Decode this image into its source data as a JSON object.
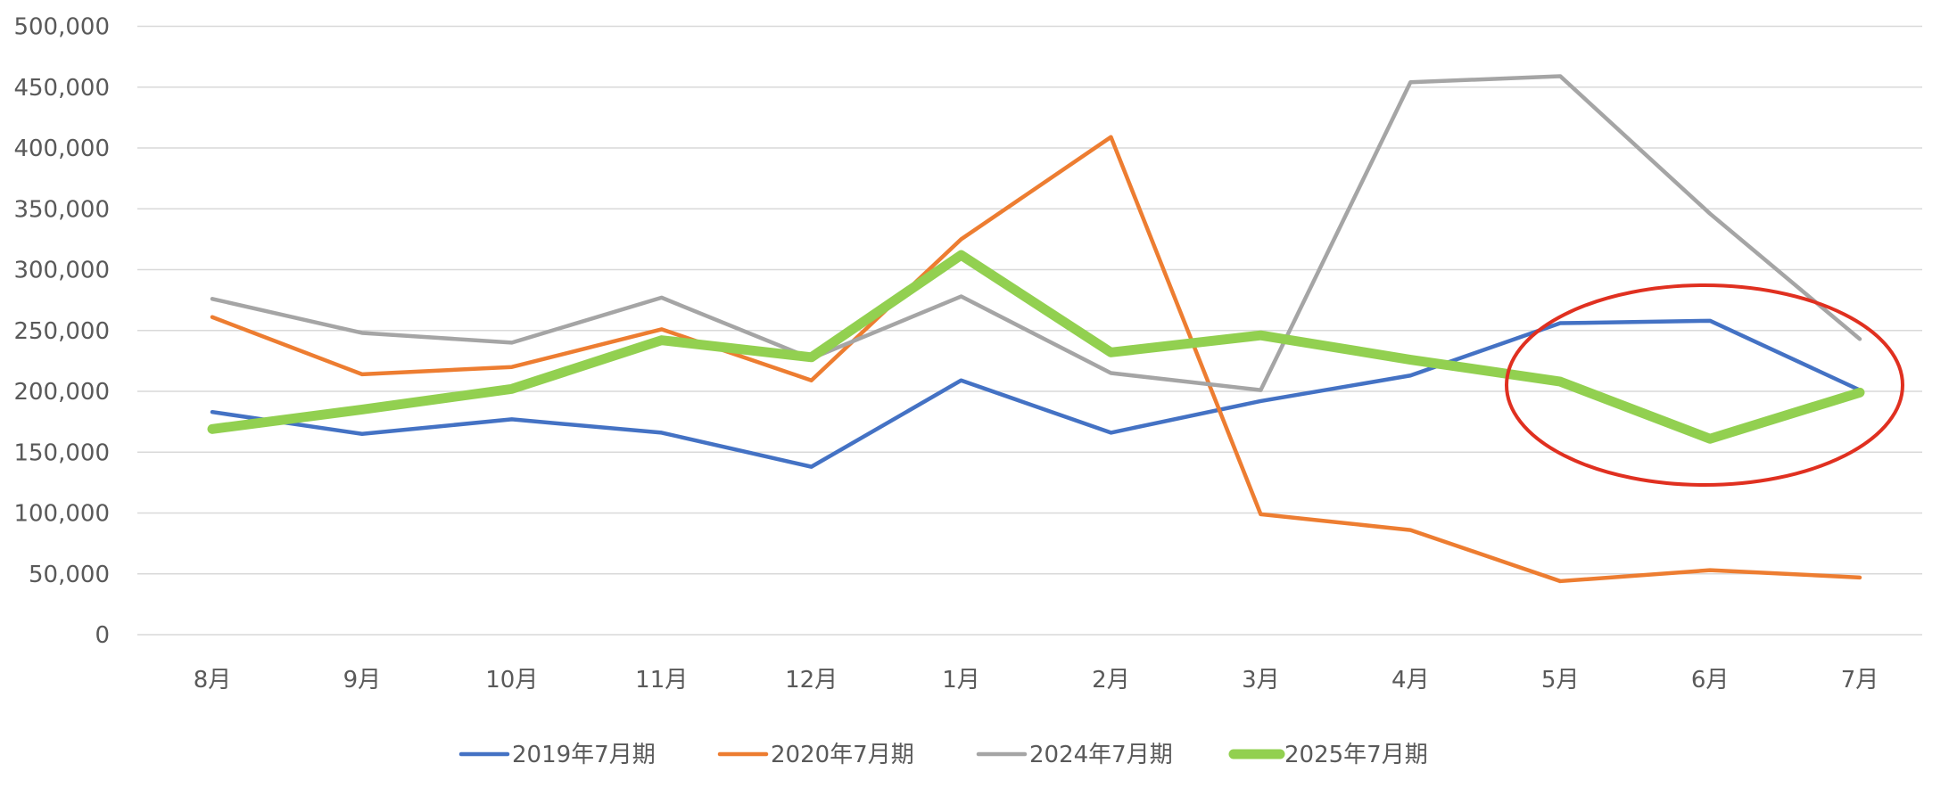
{
  "chart_data": {
    "type": "line",
    "title": "",
    "xlabel": "",
    "ylabel": "",
    "ylim": [
      0,
      500000
    ],
    "yticks": [
      0,
      50000,
      100000,
      150000,
      200000,
      250000,
      300000,
      350000,
      400000,
      450000,
      500000
    ],
    "ytick_labels": [
      "0",
      "50,000",
      "100,000",
      "150,000",
      "200,000",
      "250,000",
      "300,000",
      "350,000",
      "400,000",
      "450,000",
      "500,000"
    ],
    "grid": true,
    "legend_position": "bottom",
    "categories": [
      "8月",
      "9月",
      "10月",
      "11月",
      "12月",
      "1月",
      "2月",
      "3月",
      "4月",
      "5月",
      "6月",
      "7月"
    ],
    "series": [
      {
        "name": "2019年7月期",
        "color": "#4472c4",
        "values": [
          183000,
          165000,
          177000,
          166000,
          138000,
          209000,
          166000,
          192000,
          213000,
          256000,
          258000,
          201000
        ]
      },
      {
        "name": "2020年7月期",
        "color": "#ed7d31",
        "values": [
          261000,
          214000,
          220000,
          251000,
          209000,
          325000,
          409000,
          99000,
          86000,
          44000,
          53000,
          47000
        ]
      },
      {
        "name": "2024年7月期",
        "color": "#a5a5a5",
        "values": [
          276000,
          248000,
          240000,
          277000,
          227000,
          278000,
          215000,
          201000,
          454000,
          459000,
          346000,
          243000
        ]
      },
      {
        "name": "2025年7月期",
        "color": "#92d050",
        "values": [
          169000,
          185000,
          202000,
          242000,
          228000,
          312000,
          232000,
          246000,
          226000,
          208000,
          161000,
          199000
        ]
      }
    ],
    "annotations": [
      {
        "type": "ellipse",
        "color": "#e03020",
        "highlights": [
          "5月",
          "6月",
          "7月"
        ]
      }
    ]
  }
}
